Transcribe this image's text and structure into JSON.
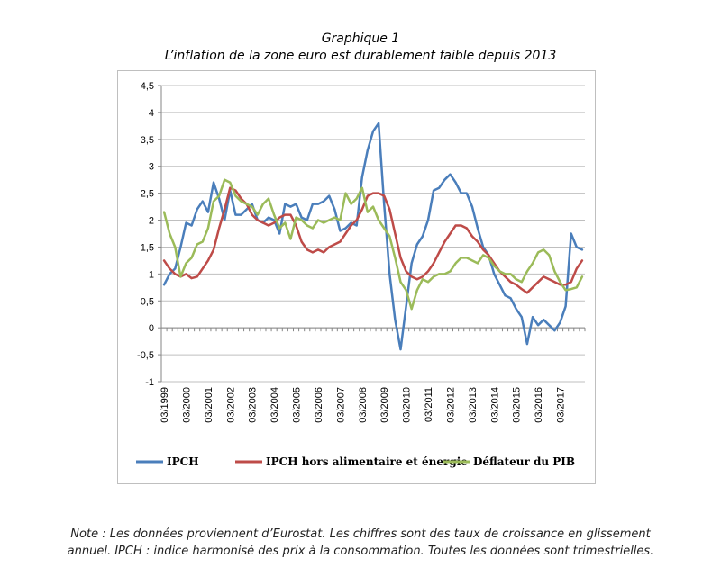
{
  "figure": {
    "title_line1": "Graphique 1",
    "title_line2": "L’inflation de la zone euro est durablement faible depuis 2013",
    "note_line1": "Note : Les données proviennent d’Eurostat. Les chiffres sont des taux de croissance en glissement",
    "note_line2": "annuel. IPCH : indice harmonisé des prix à la consommation. Toutes les données sont trimestrielles."
  },
  "chart_data": {
    "type": "line",
    "title": "",
    "xlabel": "",
    "ylabel": "",
    "ylim": [
      -1,
      4.5
    ],
    "yticks": [
      "4,5",
      "4",
      "3,5",
      "3",
      "2,5",
      "2",
      "1,5",
      "1",
      "0,5",
      "0",
      "-0,5",
      "-1"
    ],
    "ytick_values": [
      4.5,
      4,
      3.5,
      3,
      2.5,
      2,
      1.5,
      1,
      0.5,
      0,
      -0.5,
      -1
    ],
    "xticks": [
      "03/1999",
      "03/2000",
      "03/2001",
      "03/2002",
      "03/2003",
      "03/2004",
      "03/2005",
      "03/2006",
      "03/2007",
      "03/2008",
      "03/2009",
      "03/2010",
      "03/2011",
      "03/2012",
      "03/2013",
      "03/2014",
      "03/2015",
      "03/2016",
      "03/2017"
    ],
    "x_start": "03/1999",
    "frequency": "quarterly",
    "grid": "horizontal",
    "legend_position": "bottom",
    "series": [
      {
        "name": "IPCH",
        "color": "#4a7ebb",
        "values": [
          0.8,
          1.0,
          1.1,
          1.5,
          1.95,
          1.9,
          2.2,
          2.35,
          2.15,
          2.7,
          2.4,
          2.0,
          2.55,
          2.1,
          2.1,
          2.2,
          2.3,
          2.0,
          1.95,
          2.05,
          2.0,
          1.75,
          2.3,
          2.25,
          2.3,
          2.05,
          2.0,
          2.3,
          2.3,
          2.35,
          2.45,
          2.2,
          1.8,
          1.85,
          1.95,
          1.9,
          2.8,
          3.3,
          3.65,
          3.8,
          2.3,
          1.0,
          0.15,
          -0.4,
          0.4,
          1.2,
          1.55,
          1.7,
          2.0,
          2.55,
          2.6,
          2.75,
          2.85,
          2.7,
          2.5,
          2.5,
          2.25,
          1.85,
          1.5,
          1.35,
          1.0,
          0.8,
          0.6,
          0.55,
          0.35,
          0.2,
          -0.3,
          0.2,
          0.05,
          0.15,
          0.05,
          -0.05,
          0.1,
          0.4,
          1.75,
          1.5,
          1.45
        ]
      },
      {
        "name": "IPCH hors alimentaire et énergie",
        "color": "#be4b48",
        "values": [
          1.25,
          1.1,
          1.0,
          0.95,
          1.0,
          0.92,
          0.95,
          1.1,
          1.25,
          1.45,
          1.85,
          2.2,
          2.6,
          2.55,
          2.4,
          2.3,
          2.1,
          2.0,
          1.95,
          1.9,
          1.95,
          2.05,
          2.1,
          2.1,
          1.9,
          1.6,
          1.45,
          1.4,
          1.45,
          1.4,
          1.5,
          1.55,
          1.6,
          1.75,
          1.9,
          2.0,
          2.2,
          2.45,
          2.5,
          2.5,
          2.45,
          2.2,
          1.75,
          1.3,
          1.05,
          0.95,
          0.9,
          0.95,
          1.05,
          1.2,
          1.4,
          1.6,
          1.75,
          1.9,
          1.9,
          1.85,
          1.7,
          1.6,
          1.45,
          1.35,
          1.2,
          1.05,
          0.95,
          0.85,
          0.8,
          0.72,
          0.65,
          0.75,
          0.85,
          0.95,
          0.9,
          0.85,
          0.8,
          0.8,
          0.85,
          1.1,
          1.25
        ]
      },
      {
        "name": "Déflateur du PIB",
        "color": "#9bbb59",
        "values": [
          2.15,
          1.75,
          1.5,
          0.95,
          1.2,
          1.3,
          1.55,
          1.6,
          1.85,
          2.35,
          2.45,
          2.75,
          2.7,
          2.45,
          2.35,
          2.3,
          2.25,
          2.1,
          2.3,
          2.4,
          2.1,
          1.85,
          1.95,
          1.65,
          2.05,
          2.0,
          1.9,
          1.85,
          2.0,
          1.95,
          2.0,
          2.05,
          2.0,
          2.5,
          2.3,
          2.4,
          2.6,
          2.15,
          2.25,
          2.0,
          1.85,
          1.7,
          1.3,
          0.85,
          0.7,
          0.35,
          0.7,
          0.9,
          0.85,
          0.95,
          1.0,
          1.0,
          1.05,
          1.2,
          1.3,
          1.3,
          1.25,
          1.2,
          1.35,
          1.3,
          1.15,
          1.05,
          1.0,
          1.0,
          0.9,
          0.85,
          1.05,
          1.2,
          1.4,
          1.45,
          1.35,
          1.05,
          0.85,
          0.7,
          0.72,
          0.75,
          0.95
        ]
      }
    ]
  }
}
